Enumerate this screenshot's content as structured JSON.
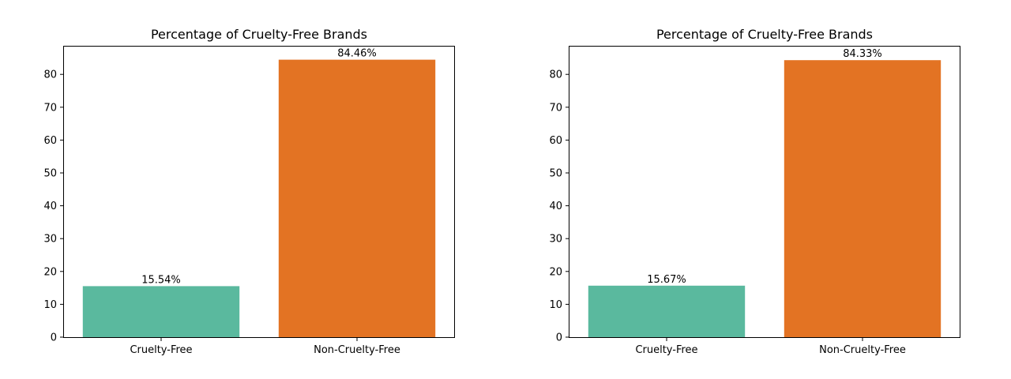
{
  "colors": {
    "cruelty_free": "#5ab99e",
    "non_cruelty_free": "#e37323",
    "axis": "#000000",
    "background": "#ffffff"
  },
  "chart_data": [
    {
      "type": "bar",
      "title": "Percentage of Cruelty-Free Brands",
      "categories": [
        "Cruelty-Free",
        "Non-Cruelty-Free"
      ],
      "values": [
        15.54,
        84.46
      ],
      "data_labels": [
        "15.54%",
        "84.46%"
      ],
      "xlabel": "",
      "ylabel": "",
      "ylim": [
        0,
        88.7
      ],
      "yticks": [
        0,
        10,
        20,
        30,
        40,
        50,
        60,
        70,
        80
      ],
      "ytick_labels": [
        "0",
        "10",
        "20",
        "30",
        "40",
        "50",
        "60",
        "70",
        "80"
      ],
      "grid": false
    },
    {
      "type": "bar",
      "title": "Percentage of Cruelty-Free Brands",
      "categories": [
        "Cruelty-Free",
        "Non-Cruelty-Free"
      ],
      "values": [
        15.67,
        84.33
      ],
      "data_labels": [
        "15.67%",
        "84.33%"
      ],
      "xlabel": "",
      "ylabel": "",
      "ylim": [
        0,
        88.7
      ],
      "yticks": [
        0,
        10,
        20,
        30,
        40,
        50,
        60,
        70,
        80
      ],
      "ytick_labels": [
        "0",
        "10",
        "20",
        "30",
        "40",
        "50",
        "60",
        "70",
        "80"
      ],
      "grid": false
    }
  ]
}
